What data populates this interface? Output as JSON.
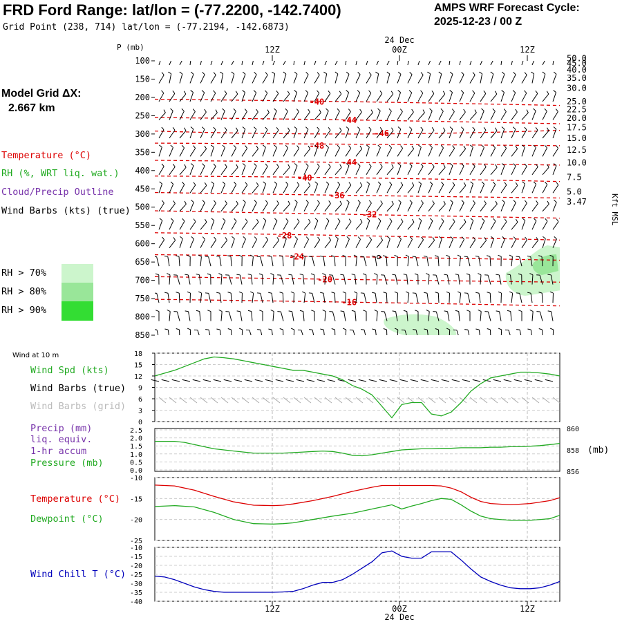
{
  "header": {
    "title": "FRD Ford Range:  lat/lon = (-77.2200, -142.7400)",
    "gridpoint": "Grid Point (238, 714) lat/lon = (-77.2194, -142.6873)",
    "cycle_line1": "AMPS WRF Forecast Cycle:",
    "cycle_line2": "2025-12-23 / 00  Z"
  },
  "left_legend": {
    "model_grid_label": "Model Grid ΔX:",
    "model_grid_value": "2.667 km",
    "temperature": "Temperature (°C)",
    "rh": "RH (%, WRT liq. wat.)",
    "cloud": "Cloud/Precip Outline",
    "wind_barbs": "Wind Barbs (kts) (true)",
    "rh_levels": [
      "RH > 70%",
      "RH > 80%",
      "RH > 90%"
    ]
  },
  "colors": {
    "temperature": "#dd0000",
    "rh_label": "#22aa22",
    "cloud": "#7733aa",
    "rh70": "#ccf5cc",
    "rh80": "#99e699",
    "rh90": "#33dd33",
    "windchill": "#0000bb",
    "gray": "#aaaaaa"
  },
  "time_axis": {
    "top_date": "24 Dec",
    "bottom_date": "24 Dec",
    "ticks": [
      "12Z",
      "00Z",
      "12Z"
    ]
  },
  "chart_data": [
    {
      "type": "line",
      "panel": "upper-air time-height section",
      "y_axis_label": "P (mb)",
      "y_axis_right_label": "Kft MSL",
      "pressure_levels": [
        100,
        150,
        200,
        250,
        300,
        350,
        400,
        450,
        500,
        550,
        600,
        650,
        700,
        750,
        800,
        850
      ],
      "height_kft_labels": [
        "50.0",
        "45.0",
        "40.0",
        "35.0",
        "30.0",
        "25.0",
        "22.5",
        "20.0",
        "17.5",
        "15.0",
        "12.5",
        "10.0",
        "7.5",
        "5.0",
        "3.47"
      ],
      "height_kft_pressure": [
        93,
        107,
        125,
        147,
        175,
        211,
        233,
        257,
        282,
        312,
        344,
        379,
        418,
        458,
        485
      ],
      "isotherms": [
        {
          "label": "-40",
          "label_x": 0.4,
          "label_p": 212,
          "p": [
            205,
            212,
            222
          ]
        },
        {
          "label": "-44",
          "label_x": 0.48,
          "label_p": 262,
          "p": [
            255,
            262,
            272
          ]
        },
        {
          "label": "-46",
          "label_x": 0.56,
          "label_p": 298,
          "p": [
            292,
            300,
            290
          ]
        },
        {
          "label": "-48",
          "label_x": 0.4,
          "label_p": 332,
          "p": [
            325,
            328,
            332
          ]
        },
        {
          "label": "-44",
          "label_x": 0.48,
          "label_p": 378,
          "p": [
            372,
            378,
            385
          ]
        },
        {
          "label": "-40",
          "label_x": 0.37,
          "label_p": 420,
          "p": [
            415,
            420,
            430
          ]
        },
        {
          "label": "-36",
          "label_x": 0.45,
          "label_p": 468,
          "p": [
            460,
            468,
            475
          ]
        },
        {
          "label": "-32",
          "label_x": 0.53,
          "label_p": 520,
          "p": [
            510,
            520,
            530
          ]
        },
        {
          "label": "-28",
          "label_x": 0.32,
          "label_p": 578,
          "p": [
            570,
            578,
            590
          ]
        },
        {
          "label": "-24",
          "label_x": 0.35,
          "label_p": 636,
          "p": [
            630,
            636,
            645
          ]
        },
        {
          "label": "-20",
          "label_x": 0.42,
          "label_p": 698,
          "p": [
            690,
            698,
            705
          ]
        },
        {
          "label": "-16",
          "label_x": 0.48,
          "label_p": 760,
          "p": [
            752,
            760,
            770
          ]
        }
      ],
      "xlim_hours": [
        0,
        41
      ]
    },
    {
      "type": "line",
      "panel": "wind at 10 m",
      "title": "Wind at 10 m",
      "labels": [
        "Wind Spd (kts)",
        "Wind Barbs (true)",
        "Wind Barbs (grid)"
      ],
      "y_ticks": [
        0,
        3,
        6,
        9,
        12,
        15,
        18
      ],
      "ylim": [
        0,
        18
      ],
      "hours": [
        0,
        2,
        4,
        5,
        6,
        7,
        8,
        9,
        10,
        11,
        12,
        13,
        14,
        15,
        16,
        17,
        18,
        19,
        20,
        21,
        22,
        23,
        24,
        25,
        26,
        27,
        28,
        29,
        30,
        31,
        32,
        33,
        34,
        35,
        36,
        37,
        38,
        39,
        40,
        41
      ],
      "wind_speed_kts": [
        12,
        13.5,
        15.5,
        16.5,
        17,
        16.8,
        16.5,
        16,
        15.5,
        15,
        14.5,
        14,
        13.5,
        13.5,
        13,
        12.5,
        12,
        11,
        9.5,
        8.5,
        7,
        4,
        1,
        4.5,
        5,
        5,
        2,
        1.5,
        2.5,
        5,
        8,
        10,
        11.5,
        12,
        12.5,
        13,
        13,
        12.8,
        12.5,
        12
      ]
    },
    {
      "type": "line",
      "panel": "precip and pressure",
      "labels": [
        "Precip (mm)",
        "liq. equiv.",
        "1-hr accum",
        "Pressure (mb)"
      ],
      "left_ticks": [
        "2.5",
        "2.0",
        "1.5",
        "1.0",
        "0.5",
        "0.0"
      ],
      "right_ticks": [
        "860",
        "858",
        "856"
      ],
      "right_unit": "(mb)",
      "ylim_pressure": [
        856,
        860
      ],
      "hours": [
        0,
        1,
        2,
        3,
        4,
        5,
        6,
        7,
        8,
        9,
        10,
        11,
        12,
        13,
        14,
        15,
        16,
        17,
        18,
        19,
        20,
        21,
        22,
        23,
        24,
        25,
        26,
        27,
        28,
        29,
        30,
        31,
        32,
        33,
        34,
        35,
        36,
        37,
        38,
        39,
        40,
        41
      ],
      "pressure_mb": [
        858.8,
        858.8,
        858.8,
        858.7,
        858.5,
        858.3,
        858.1,
        858.0,
        857.9,
        857.8,
        857.7,
        857.7,
        857.7,
        857.7,
        857.75,
        857.8,
        857.85,
        857.9,
        857.85,
        857.7,
        857.5,
        857.45,
        857.55,
        857.7,
        857.85,
        858.0,
        858.05,
        858.1,
        858.1,
        858.15,
        858.15,
        858.2,
        858.2,
        858.2,
        858.25,
        858.25,
        858.3,
        858.3,
        858.35,
        858.4,
        858.5,
        858.6
      ]
    },
    {
      "type": "line",
      "panel": "temperature and dewpoint",
      "labels": [
        "Temperature (°C)",
        "Dewpoint (°C)"
      ],
      "y_ticks": [
        "-10",
        "-15",
        "-20",
        "-25"
      ],
      "ylim": [
        -25,
        -10
      ],
      "hours": [
        0,
        2,
        4,
        6,
        8,
        10,
        12,
        13,
        14,
        16,
        18,
        20,
        22,
        23,
        24,
        25,
        26,
        27,
        28,
        29,
        30,
        31,
        32,
        33,
        34,
        36,
        38,
        40,
        41
      ],
      "temperature_c": [
        -11.8,
        -12,
        -13,
        -14.5,
        -15.8,
        -16.6,
        -16.7,
        -16.6,
        -16.3,
        -15.5,
        -14.5,
        -13.3,
        -12.3,
        -11.9,
        -11.9,
        -11.9,
        -11.9,
        -11.9,
        -11.9,
        -12,
        -12.5,
        -13.4,
        -14.7,
        -15.7,
        -16.2,
        -16.5,
        -16.2,
        -15.5,
        -14.8
      ],
      "dewpoint_c": [
        -16.9,
        -16.7,
        -17,
        -18.3,
        -20,
        -21,
        -21.1,
        -21,
        -20.8,
        -20,
        -19.2,
        -18.5,
        -17.5,
        -17,
        -16.5,
        -17.5,
        -16.8,
        -16.2,
        -15.5,
        -15,
        -15.2,
        -16.5,
        -18,
        -19.2,
        -19.8,
        -20.2,
        -20.2,
        -19.8,
        -19
      ]
    },
    {
      "type": "line",
      "panel": "wind chill",
      "labels": [
        "Wind Chill T (°C)"
      ],
      "y_ticks": [
        "-10",
        "-15",
        "-20",
        "-25",
        "-30",
        "-35",
        "-40"
      ],
      "ylim": [
        -40,
        -10
      ],
      "hours": [
        0,
        1,
        2,
        3,
        4,
        5,
        6,
        7,
        8,
        9,
        10,
        11,
        12,
        13,
        14,
        15,
        16,
        17,
        18,
        19,
        20,
        21,
        22,
        23,
        24,
        25,
        26,
        27,
        28,
        29,
        30,
        31,
        32,
        33,
        34,
        35,
        36,
        37,
        38,
        39,
        40,
        41
      ],
      "wind_chill_c": [
        -26,
        -26.5,
        -28,
        -30,
        -32,
        -33.5,
        -34.5,
        -35,
        -35,
        -35,
        -35,
        -35,
        -35,
        -34.8,
        -34.5,
        -33,
        -31,
        -29.5,
        -29.5,
        -28,
        -25,
        -21.5,
        -18,
        -13,
        -12,
        -15,
        -16,
        -16,
        -12.5,
        -12.5,
        -12.5,
        -17,
        -22,
        -26.5,
        -29,
        -31,
        -32.5,
        -33,
        -33,
        -32.5,
        -31,
        -29
      ]
    }
  ]
}
